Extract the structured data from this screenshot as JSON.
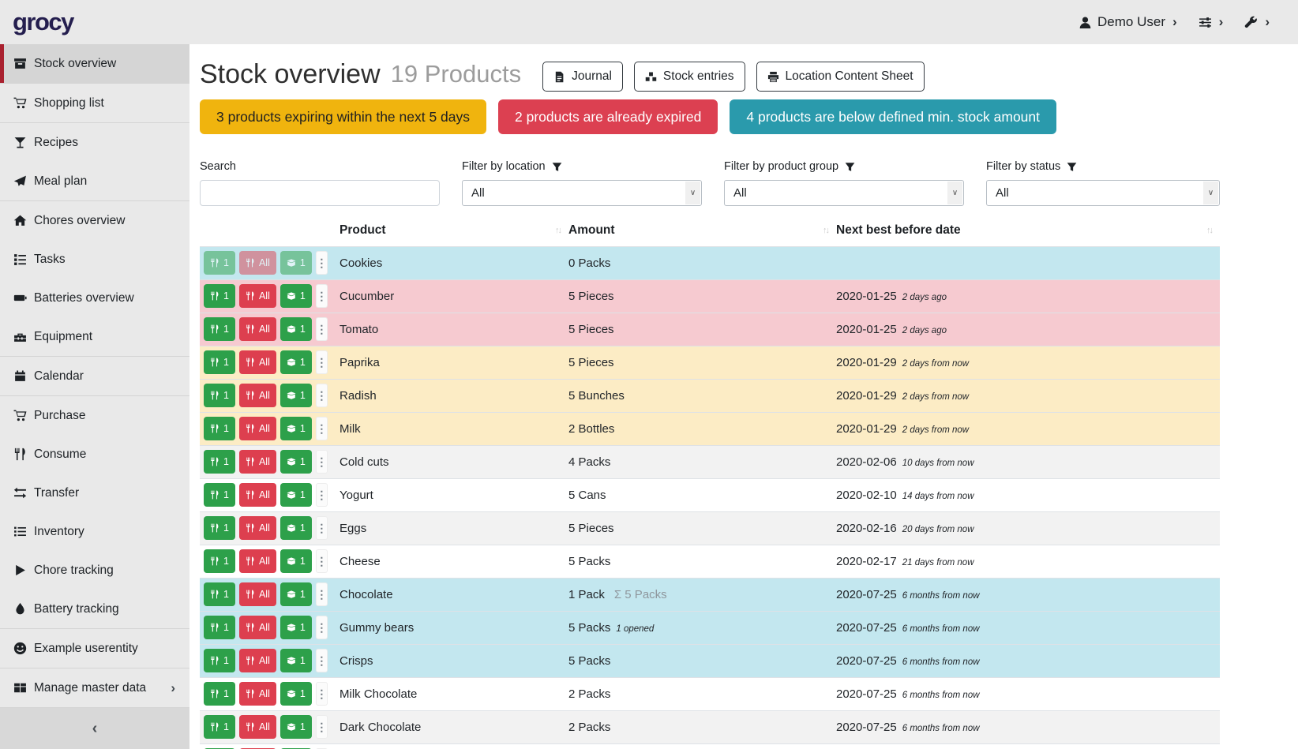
{
  "topbar": {
    "logo": "grocy",
    "nav": [
      {
        "name": "user-menu",
        "icon": "user",
        "label": "Demo User"
      },
      {
        "name": "settings-menu",
        "icon": "sliders",
        "label": ""
      },
      {
        "name": "admin-menu",
        "icon": "wrench",
        "label": ""
      }
    ]
  },
  "sidebar": {
    "groups": [
      [
        {
          "label": "Stock overview",
          "icon": "box",
          "active": true,
          "caret": false
        }
      ],
      [
        {
          "label": "Shopping list",
          "icon": "cart",
          "active": false,
          "caret": false
        }
      ],
      [
        {
          "label": "Recipes",
          "icon": "cocktail",
          "active": false,
          "caret": false
        },
        {
          "label": "Meal plan",
          "icon": "paper-plane",
          "active": false,
          "caret": false
        }
      ],
      [
        {
          "label": "Chores overview",
          "icon": "home",
          "active": false,
          "caret": false
        },
        {
          "label": "Tasks",
          "icon": "tasks",
          "active": false,
          "caret": false
        },
        {
          "label": "Batteries overview",
          "icon": "battery",
          "active": false,
          "caret": false
        },
        {
          "label": "Equipment",
          "icon": "toolbox",
          "active": false,
          "caret": false
        }
      ],
      [
        {
          "label": "Calendar",
          "icon": "calendar",
          "active": false,
          "caret": false
        }
      ],
      [
        {
          "label": "Purchase",
          "icon": "cart",
          "active": false,
          "caret": false
        },
        {
          "label": "Consume",
          "icon": "utensils",
          "active": false,
          "caret": false
        },
        {
          "label": "Transfer",
          "icon": "exchange",
          "active": false,
          "caret": false
        },
        {
          "label": "Inventory",
          "icon": "list",
          "active": false,
          "caret": false
        },
        {
          "label": "Chore tracking",
          "icon": "play",
          "active": false,
          "caret": false
        },
        {
          "label": "Battery tracking",
          "icon": "droplet",
          "active": false,
          "caret": false
        }
      ],
      [
        {
          "label": "Example userentity",
          "icon": "smiley",
          "active": false,
          "caret": false
        }
      ],
      [
        {
          "label": "Manage master data",
          "icon": "table",
          "active": false,
          "caret": true
        }
      ]
    ],
    "collapse_chevron": "‹"
  },
  "header": {
    "title": "Stock overview",
    "subtitle": "19 Products",
    "buttons": [
      {
        "label": "Journal",
        "icon": "file"
      },
      {
        "label": "Stock entries",
        "icon": "cubes"
      },
      {
        "label": "Location Content Sheet",
        "icon": "print"
      }
    ]
  },
  "alerts": [
    {
      "text": "3 products expiring within the next 5 days",
      "bg": "#f0b40e",
      "fg": "#212121"
    },
    {
      "text": "2 products are already expired",
      "bg": "#dc4051",
      "fg": "#ffffff"
    },
    {
      "text": "4 products are below defined min. stock amount",
      "bg": "#2a9aac",
      "fg": "#ffffff"
    }
  ],
  "filters": {
    "search": {
      "label": "Search",
      "value": "",
      "placeholder": ""
    },
    "selects": [
      {
        "name": "location-filter",
        "label": "Filter by location",
        "value": "All"
      },
      {
        "name": "product-group-filter",
        "label": "Filter by product group",
        "value": "All"
      },
      {
        "name": "status-filter",
        "label": "Filter by status",
        "value": "All"
      }
    ]
  },
  "table": {
    "columns": [
      "Product",
      "Amount",
      "Next best before date"
    ],
    "row_actions": {
      "consume_one_label": "1",
      "consume_all_label": "All",
      "open_one_label": "1"
    },
    "rows": [
      {
        "product": "Cookies",
        "amount": "0 Packs",
        "amount_aggregate": "",
        "amount_note": "",
        "date": "",
        "date_relative": "",
        "status": "belowmin",
        "actions_muted": true,
        "partial": false
      },
      {
        "product": "Cucumber",
        "amount": "5 Pieces",
        "amount_aggregate": "",
        "amount_note": "",
        "date": "2020-01-25",
        "date_relative": "2 days ago",
        "status": "expired",
        "actions_muted": false,
        "partial": false
      },
      {
        "product": "Tomato",
        "amount": "5 Pieces",
        "amount_aggregate": "",
        "amount_note": "",
        "date": "2020-01-25",
        "date_relative": "2 days ago",
        "status": "expired",
        "actions_muted": false,
        "partial": false
      },
      {
        "product": "Paprika",
        "amount": "5 Pieces",
        "amount_aggregate": "",
        "amount_note": "",
        "date": "2020-01-29",
        "date_relative": "2 days from now",
        "status": "expiring",
        "actions_muted": false,
        "partial": false
      },
      {
        "product": "Radish",
        "amount": "5 Bunches",
        "amount_aggregate": "",
        "amount_note": "",
        "date": "2020-01-29",
        "date_relative": "2 days from now",
        "status": "expiring",
        "actions_muted": false,
        "partial": false
      },
      {
        "product": "Milk",
        "amount": "2 Bottles",
        "amount_aggregate": "",
        "amount_note": "",
        "date": "2020-01-29",
        "date_relative": "2 days from now",
        "status": "expiring",
        "actions_muted": false,
        "partial": false
      },
      {
        "product": "Cold cuts",
        "amount": "4 Packs",
        "amount_aggregate": "",
        "amount_note": "",
        "date": "2020-02-06",
        "date_relative": "10 days from now",
        "status": "none",
        "actions_muted": false,
        "partial": false
      },
      {
        "product": "Yogurt",
        "amount": "5 Cans",
        "amount_aggregate": "",
        "amount_note": "",
        "date": "2020-02-10",
        "date_relative": "14 days from now",
        "status": "none",
        "actions_muted": false,
        "partial": false
      },
      {
        "product": "Eggs",
        "amount": "5 Pieces",
        "amount_aggregate": "",
        "amount_note": "",
        "date": "2020-02-16",
        "date_relative": "20 days from now",
        "status": "none",
        "actions_muted": false,
        "partial": false
      },
      {
        "product": "Cheese",
        "amount": "5 Packs",
        "amount_aggregate": "",
        "amount_note": "",
        "date": "2020-02-17",
        "date_relative": "21 days from now",
        "status": "none",
        "actions_muted": false,
        "partial": false
      },
      {
        "product": "Chocolate",
        "amount": "1 Pack",
        "amount_aggregate": "Σ 5 Packs",
        "amount_note": "",
        "date": "2020-07-25",
        "date_relative": "6 months from now",
        "status": "belowmin",
        "actions_muted": false,
        "partial": false
      },
      {
        "product": "Gummy bears",
        "amount": "5 Packs",
        "amount_aggregate": "",
        "amount_note": "1 opened",
        "date": "2020-07-25",
        "date_relative": "6 months from now",
        "status": "belowmin",
        "actions_muted": false,
        "partial": false
      },
      {
        "product": "Crisps",
        "amount": "5 Packs",
        "amount_aggregate": "",
        "amount_note": "",
        "date": "2020-07-25",
        "date_relative": "6 months from now",
        "status": "belowmin",
        "actions_muted": false,
        "partial": false
      },
      {
        "product": "Milk Chocolate",
        "amount": "2 Packs",
        "amount_aggregate": "",
        "amount_note": "",
        "date": "2020-07-25",
        "date_relative": "6 months from now",
        "status": "none",
        "actions_muted": false,
        "partial": false
      },
      {
        "product": "Dark Chocolate",
        "amount": "2 Packs",
        "amount_aggregate": "",
        "amount_note": "",
        "date": "2020-07-25",
        "date_relative": "6 months from now",
        "status": "none",
        "actions_muted": false,
        "partial": false
      },
      {
        "product": "",
        "amount": "",
        "amount_aggregate": "",
        "amount_note": "",
        "date": "",
        "date_relative": "",
        "status": "none",
        "actions_muted": false,
        "partial": true
      }
    ]
  },
  "colors": {
    "accent_red": "#a9212f",
    "action_green": "#2da04a",
    "action_red": "#dd3f4f",
    "alert_yellow": "#f0b40e",
    "alert_red": "#dc4051",
    "alert_teal": "#2a9aac",
    "row_expired": "#f6cad0",
    "row_expiring": "#fcecc5",
    "row_below_min": "#c3e7ef",
    "row_stripe": "#f2f2f2",
    "logo_navy": "#241e4e"
  }
}
